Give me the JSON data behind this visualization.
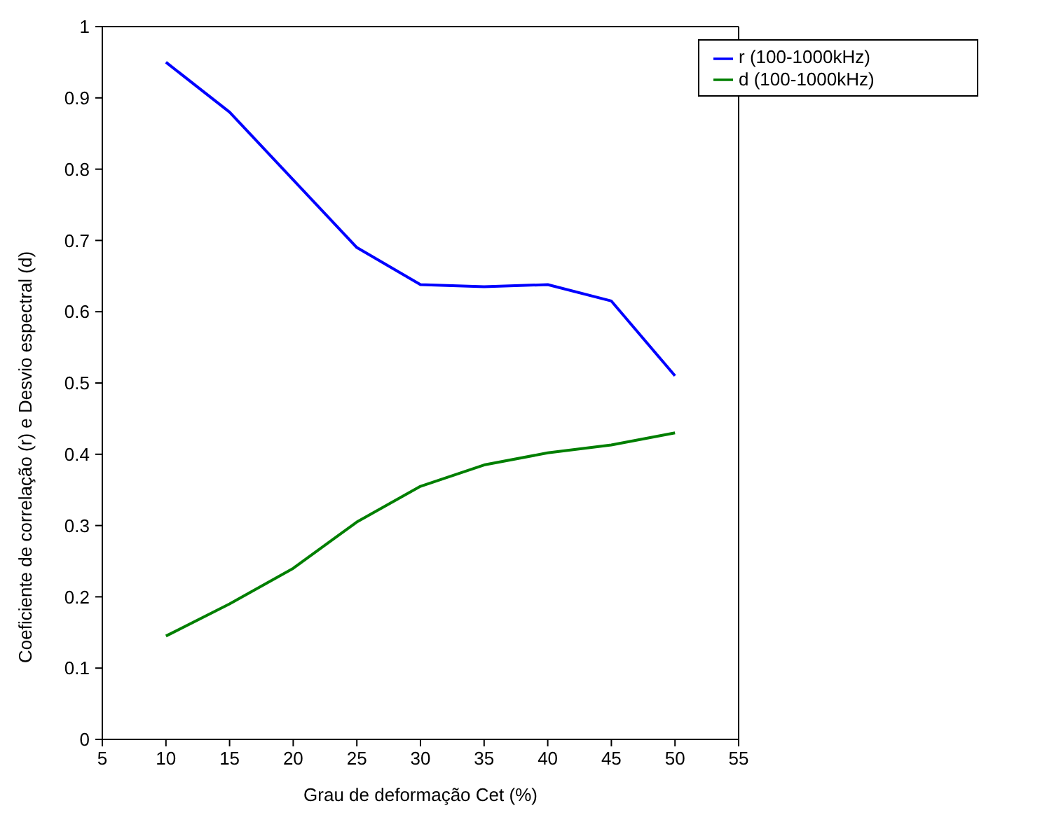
{
  "chart_data": {
    "type": "line",
    "xlabel": "Grau de deformação Cet (%)",
    "ylabel": "Coeficiente de correlação (r) e Desvio espectral (d)",
    "x": [
      10,
      15,
      20,
      25,
      30,
      35,
      40,
      45,
      50
    ],
    "series": [
      {
        "name": "r (100-1000kHz)",
        "color": "#0000ff",
        "values": [
          0.95,
          0.88,
          0.785,
          0.69,
          0.638,
          0.635,
          0.638,
          0.615,
          0.51
        ]
      },
      {
        "name": "d (100-1000kHz)",
        "color": "#007f00",
        "values": [
          0.145,
          0.19,
          0.24,
          0.305,
          0.355,
          0.385,
          0.402,
          0.413,
          0.43
        ]
      }
    ],
    "xlim": [
      5,
      55
    ],
    "xticks": [
      5,
      10,
      15,
      20,
      25,
      30,
      35,
      40,
      45,
      50,
      55
    ],
    "ylim": [
      0,
      1
    ],
    "yticks": [
      0,
      0.1,
      0.2,
      0.3,
      0.4,
      0.5,
      0.6,
      0.7,
      0.8,
      0.9,
      1
    ],
    "grid": false,
    "legend": "top right",
    "marker": "none",
    "line_style": "solid"
  }
}
